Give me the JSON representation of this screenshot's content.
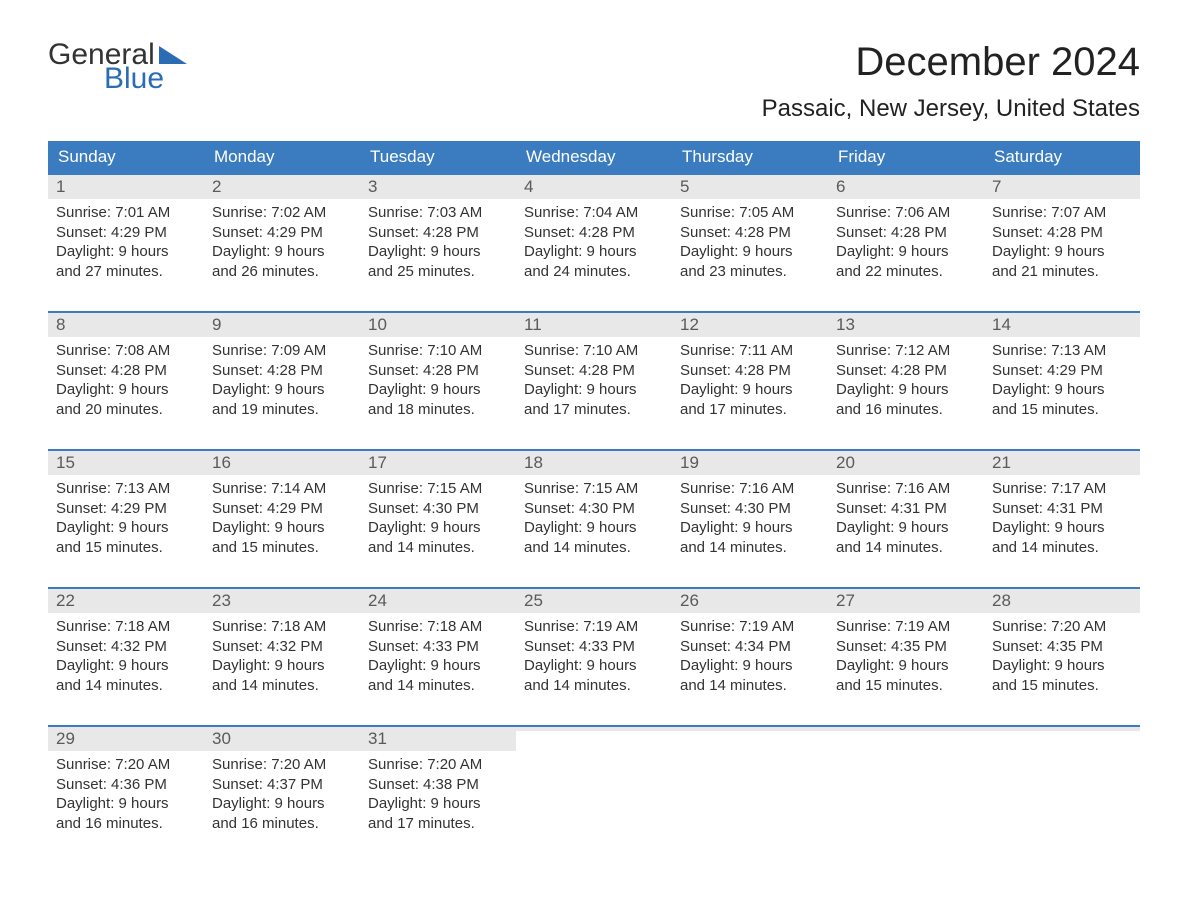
{
  "logo": {
    "general": "General",
    "blue": "Blue"
  },
  "header": {
    "title": "December 2024",
    "location": "Passaic, New Jersey, United States"
  },
  "colors": {
    "header_bg": "#3a7cbf",
    "header_text": "#ffffff",
    "daynum_bg": "#e8e8e8",
    "week_border": "#3a7cbf",
    "logo_blue": "#2a6db3",
    "body_text": "#333333",
    "page_bg": "#ffffff"
  },
  "typography": {
    "title_fontsize": 40,
    "location_fontsize": 24,
    "dow_fontsize": 17,
    "daynum_fontsize": 17,
    "body_fontsize": 15,
    "logo_fontsize": 30
  },
  "dow": [
    "Sunday",
    "Monday",
    "Tuesday",
    "Wednesday",
    "Thursday",
    "Friday",
    "Saturday"
  ],
  "weeks": [
    [
      {
        "n": "1",
        "sr": "Sunrise: 7:01 AM",
        "ss": "Sunset: 4:29 PM",
        "d1": "Daylight: 9 hours",
        "d2": "and 27 minutes."
      },
      {
        "n": "2",
        "sr": "Sunrise: 7:02 AM",
        "ss": "Sunset: 4:29 PM",
        "d1": "Daylight: 9 hours",
        "d2": "and 26 minutes."
      },
      {
        "n": "3",
        "sr": "Sunrise: 7:03 AM",
        "ss": "Sunset: 4:28 PM",
        "d1": "Daylight: 9 hours",
        "d2": "and 25 minutes."
      },
      {
        "n": "4",
        "sr": "Sunrise: 7:04 AM",
        "ss": "Sunset: 4:28 PM",
        "d1": "Daylight: 9 hours",
        "d2": "and 24 minutes."
      },
      {
        "n": "5",
        "sr": "Sunrise: 7:05 AM",
        "ss": "Sunset: 4:28 PM",
        "d1": "Daylight: 9 hours",
        "d2": "and 23 minutes."
      },
      {
        "n": "6",
        "sr": "Sunrise: 7:06 AM",
        "ss": "Sunset: 4:28 PM",
        "d1": "Daylight: 9 hours",
        "d2": "and 22 minutes."
      },
      {
        "n": "7",
        "sr": "Sunrise: 7:07 AM",
        "ss": "Sunset: 4:28 PM",
        "d1": "Daylight: 9 hours",
        "d2": "and 21 minutes."
      }
    ],
    [
      {
        "n": "8",
        "sr": "Sunrise: 7:08 AM",
        "ss": "Sunset: 4:28 PM",
        "d1": "Daylight: 9 hours",
        "d2": "and 20 minutes."
      },
      {
        "n": "9",
        "sr": "Sunrise: 7:09 AM",
        "ss": "Sunset: 4:28 PM",
        "d1": "Daylight: 9 hours",
        "d2": "and 19 minutes."
      },
      {
        "n": "10",
        "sr": "Sunrise: 7:10 AM",
        "ss": "Sunset: 4:28 PM",
        "d1": "Daylight: 9 hours",
        "d2": "and 18 minutes."
      },
      {
        "n": "11",
        "sr": "Sunrise: 7:10 AM",
        "ss": "Sunset: 4:28 PM",
        "d1": "Daylight: 9 hours",
        "d2": "and 17 minutes."
      },
      {
        "n": "12",
        "sr": "Sunrise: 7:11 AM",
        "ss": "Sunset: 4:28 PM",
        "d1": "Daylight: 9 hours",
        "d2": "and 17 minutes."
      },
      {
        "n": "13",
        "sr": "Sunrise: 7:12 AM",
        "ss": "Sunset: 4:28 PM",
        "d1": "Daylight: 9 hours",
        "d2": "and 16 minutes."
      },
      {
        "n": "14",
        "sr": "Sunrise: 7:13 AM",
        "ss": "Sunset: 4:29 PM",
        "d1": "Daylight: 9 hours",
        "d2": "and 15 minutes."
      }
    ],
    [
      {
        "n": "15",
        "sr": "Sunrise: 7:13 AM",
        "ss": "Sunset: 4:29 PM",
        "d1": "Daylight: 9 hours",
        "d2": "and 15 minutes."
      },
      {
        "n": "16",
        "sr": "Sunrise: 7:14 AM",
        "ss": "Sunset: 4:29 PM",
        "d1": "Daylight: 9 hours",
        "d2": "and 15 minutes."
      },
      {
        "n": "17",
        "sr": "Sunrise: 7:15 AM",
        "ss": "Sunset: 4:30 PM",
        "d1": "Daylight: 9 hours",
        "d2": "and 14 minutes."
      },
      {
        "n": "18",
        "sr": "Sunrise: 7:15 AM",
        "ss": "Sunset: 4:30 PM",
        "d1": "Daylight: 9 hours",
        "d2": "and 14 minutes."
      },
      {
        "n": "19",
        "sr": "Sunrise: 7:16 AM",
        "ss": "Sunset: 4:30 PM",
        "d1": "Daylight: 9 hours",
        "d2": "and 14 minutes."
      },
      {
        "n": "20",
        "sr": "Sunrise: 7:16 AM",
        "ss": "Sunset: 4:31 PM",
        "d1": "Daylight: 9 hours",
        "d2": "and 14 minutes."
      },
      {
        "n": "21",
        "sr": "Sunrise: 7:17 AM",
        "ss": "Sunset: 4:31 PM",
        "d1": "Daylight: 9 hours",
        "d2": "and 14 minutes."
      }
    ],
    [
      {
        "n": "22",
        "sr": "Sunrise: 7:18 AM",
        "ss": "Sunset: 4:32 PM",
        "d1": "Daylight: 9 hours",
        "d2": "and 14 minutes."
      },
      {
        "n": "23",
        "sr": "Sunrise: 7:18 AM",
        "ss": "Sunset: 4:32 PM",
        "d1": "Daylight: 9 hours",
        "d2": "and 14 minutes."
      },
      {
        "n": "24",
        "sr": "Sunrise: 7:18 AM",
        "ss": "Sunset: 4:33 PM",
        "d1": "Daylight: 9 hours",
        "d2": "and 14 minutes."
      },
      {
        "n": "25",
        "sr": "Sunrise: 7:19 AM",
        "ss": "Sunset: 4:33 PM",
        "d1": "Daylight: 9 hours",
        "d2": "and 14 minutes."
      },
      {
        "n": "26",
        "sr": "Sunrise: 7:19 AM",
        "ss": "Sunset: 4:34 PM",
        "d1": "Daylight: 9 hours",
        "d2": "and 14 minutes."
      },
      {
        "n": "27",
        "sr": "Sunrise: 7:19 AM",
        "ss": "Sunset: 4:35 PM",
        "d1": "Daylight: 9 hours",
        "d2": "and 15 minutes."
      },
      {
        "n": "28",
        "sr": "Sunrise: 7:20 AM",
        "ss": "Sunset: 4:35 PM",
        "d1": "Daylight: 9 hours",
        "d2": "and 15 minutes."
      }
    ],
    [
      {
        "n": "29",
        "sr": "Sunrise: 7:20 AM",
        "ss": "Sunset: 4:36 PM",
        "d1": "Daylight: 9 hours",
        "d2": "and 16 minutes."
      },
      {
        "n": "30",
        "sr": "Sunrise: 7:20 AM",
        "ss": "Sunset: 4:37 PM",
        "d1": "Daylight: 9 hours",
        "d2": "and 16 minutes."
      },
      {
        "n": "31",
        "sr": "Sunrise: 7:20 AM",
        "ss": "Sunset: 4:38 PM",
        "d1": "Daylight: 9 hours",
        "d2": "and 17 minutes."
      },
      {
        "empty": true
      },
      {
        "empty": true
      },
      {
        "empty": true
      },
      {
        "empty": true
      }
    ]
  ]
}
